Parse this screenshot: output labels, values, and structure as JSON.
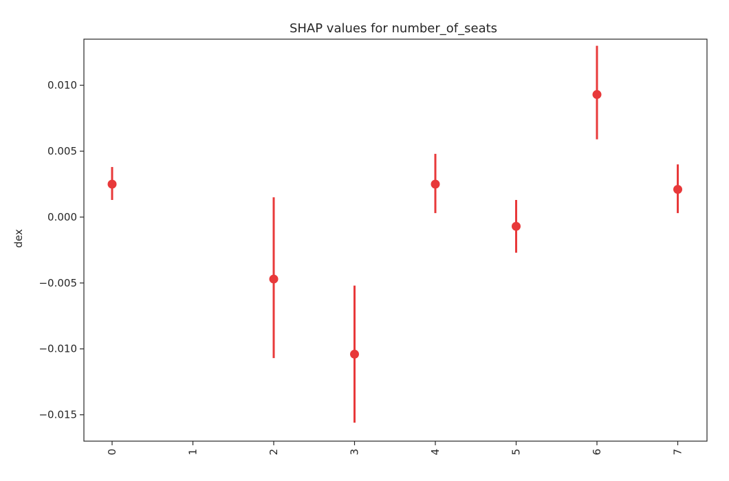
{
  "chart_data": {
    "type": "scatter",
    "title": "SHAP values for number_of_seats",
    "xlabel": "",
    "ylabel": "dex",
    "categories": [
      "0",
      "1",
      "2",
      "3",
      "4",
      "5",
      "6",
      "7"
    ],
    "series": [
      {
        "color": "#e8393a",
        "points": [
          {
            "x": "0",
            "y": 0.0025,
            "low": 0.0013,
            "high": 0.0038
          },
          {
            "x": "2",
            "y": -0.0047,
            "low": -0.0107,
            "high": 0.0015
          },
          {
            "x": "3",
            "y": -0.0104,
            "low": -0.0156,
            "high": -0.0052
          },
          {
            "x": "4",
            "y": 0.0025,
            "low": 0.0003,
            "high": 0.0048
          },
          {
            "x": "5",
            "y": -0.0007,
            "low": -0.0027,
            "high": 0.0013
          },
          {
            "x": "6",
            "y": 0.0093,
            "low": 0.0059,
            "high": 0.013
          },
          {
            "x": "7",
            "y": 0.0021,
            "low": 0.0003,
            "high": 0.004
          }
        ]
      }
    ],
    "yticks": [
      "0.010",
      "0.005",
      "0.000",
      "−0.005",
      "−0.010",
      "−0.015"
    ],
    "ytick_values": [
      0.01,
      0.005,
      0.0,
      -0.005,
      -0.01,
      -0.015
    ],
    "ylim": [
      -0.017,
      0.0135
    ],
    "xtick_rotation": -90,
    "grid": false,
    "legend": "none"
  }
}
